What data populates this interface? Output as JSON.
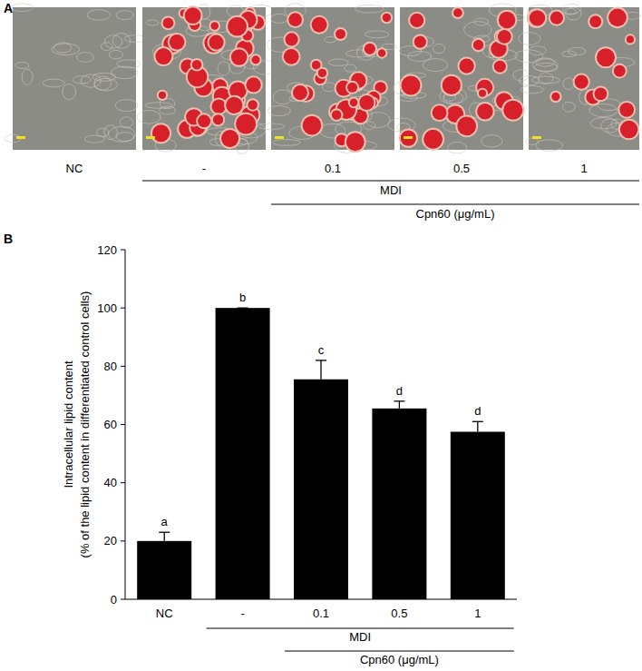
{
  "panel_labels": [
    "A",
    "B"
  ],
  "panel_a": {
    "lanes": [
      "NC",
      "-",
      "0.1",
      "0.5",
      "1"
    ],
    "groups": [
      "MDI",
      "Cpn60 (μg/mL)"
    ]
  },
  "chart_data": {
    "type": "bar",
    "categories": [
      "NC",
      "-",
      "0.1",
      "0.5",
      "1"
    ],
    "values": [
      20,
      100,
      75.5,
      65.5,
      57.5
    ],
    "errors": [
      3,
      0,
      6.5,
      2.5,
      3.5
    ],
    "significance": [
      "a",
      "b",
      "c",
      "d",
      "d"
    ],
    "groups": [
      "MDI",
      "Cpn60 (μg/mL)"
    ],
    "y_label": [
      "Intracellular lipid content",
      "(% of the lipid content in differentiated control cells)"
    ],
    "color": "#000000",
    "ylim": [
      0,
      120
    ],
    "yticks": [
      0,
      20,
      40,
      60,
      80,
      100,
      120
    ],
    "grid": false
  }
}
